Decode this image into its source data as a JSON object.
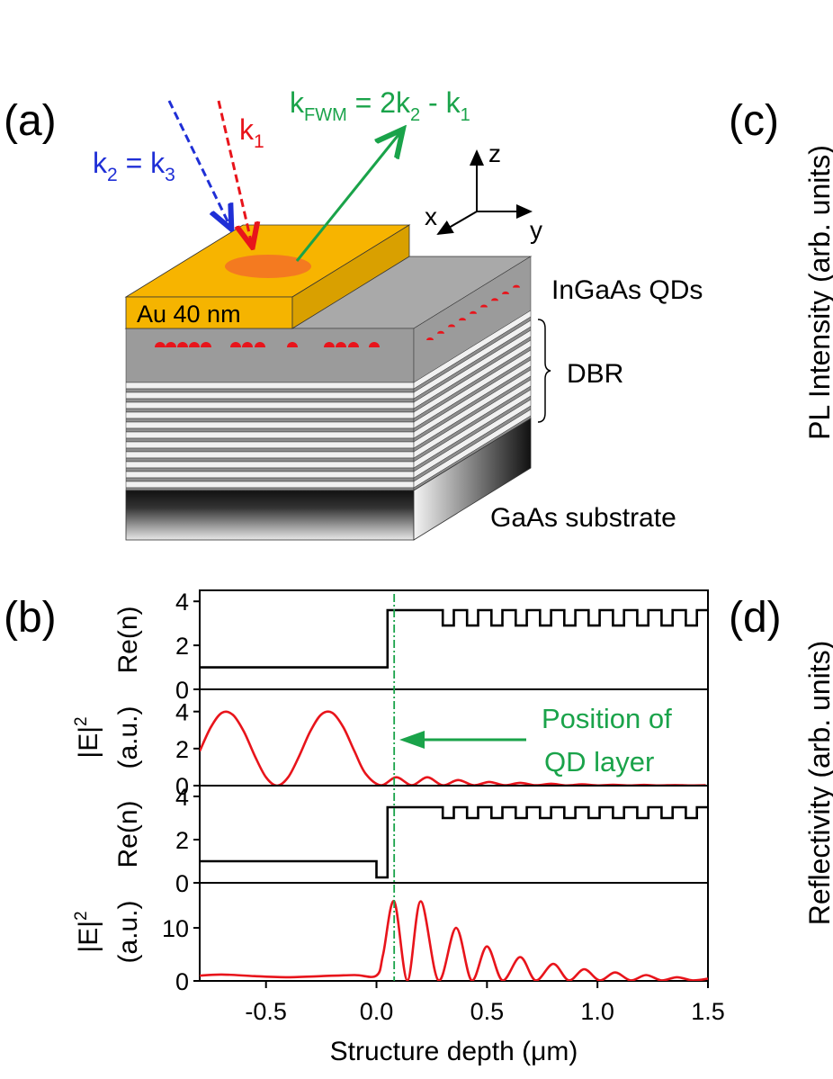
{
  "figure": {
    "panel_a": "(a)",
    "panel_b": "(b)",
    "panel_c": "(c)",
    "panel_d": "(d)",
    "c_ylabel": "PL Intensity (arb. units)",
    "d_ylabel": "Reflectivity (arb. units)"
  },
  "schematic": {
    "k1": [
      "k",
      "1"
    ],
    "k23": [
      "k",
      "2",
      " = k",
      "3"
    ],
    "kfwm": [
      "k",
      "FWM",
      " = 2k",
      "2",
      " - k",
      "1"
    ],
    "axis_z": "z",
    "axis_x": "x",
    "axis_y": "y",
    "qds": "InGaAs QDs",
    "dbr": "DBR",
    "au": "Au 40 nm",
    "substrate": "GaAs substrate"
  },
  "chart_data": [
    {
      "type": "line",
      "ylabel": "Re(n)",
      "color": "#000000",
      "smooth": false,
      "xlim": [
        -0.8,
        1.5
      ],
      "ylim": [
        0,
        4.5
      ],
      "yticks": [
        0,
        2,
        4
      ],
      "x": [
        -0.8,
        0.05,
        0.05,
        0.3,
        0.3,
        0.35,
        0.35,
        0.41,
        0.41,
        0.46,
        0.46,
        0.52,
        0.52,
        0.57,
        0.57,
        0.63,
        0.63,
        0.68,
        0.68,
        0.74,
        0.74,
        0.79,
        0.79,
        0.85,
        0.85,
        0.9,
        0.9,
        0.96,
        0.96,
        1.01,
        1.01,
        1.07,
        1.07,
        1.12,
        1.12,
        1.18,
        1.18,
        1.23,
        1.23,
        1.29,
        1.29,
        1.34,
        1.34,
        1.4,
        1.4,
        1.45,
        1.45,
        1.5
      ],
      "values": [
        1,
        1,
        3.6,
        3.6,
        2.9,
        2.9,
        3.6,
        3.6,
        2.9,
        2.9,
        3.6,
        3.6,
        2.9,
        2.9,
        3.6,
        3.6,
        2.9,
        2.9,
        3.6,
        3.6,
        2.9,
        2.9,
        3.6,
        3.6,
        2.9,
        2.9,
        3.6,
        3.6,
        2.9,
        2.9,
        3.6,
        3.6,
        2.9,
        2.9,
        3.6,
        3.6,
        2.9,
        2.9,
        3.6,
        3.6,
        2.9,
        2.9,
        3.6,
        3.6,
        2.9,
        2.9,
        3.6,
        3.6
      ]
    },
    {
      "type": "line",
      "ylabel_main": "|E|",
      "ylabel_sup": "2",
      "ylabel": "(a.u.)",
      "color": "#e8141b",
      "smooth": true,
      "xlim": [
        -0.8,
        1.5
      ],
      "ylim": [
        0,
        5.2
      ],
      "yticks": [
        0,
        2,
        4
      ],
      "x": [
        -0.8,
        -0.75,
        -0.7,
        -0.65,
        -0.6,
        -0.55,
        -0.5,
        -0.45,
        -0.4,
        -0.35,
        -0.3,
        -0.25,
        -0.2,
        -0.15,
        -0.1,
        -0.05,
        0.02,
        0.09,
        0.16,
        0.23,
        0.3,
        0.37,
        0.44,
        0.51,
        0.58,
        0.65,
        0.72,
        0.79,
        0.86,
        0.93,
        1.0,
        1.07,
        1.14,
        1.21,
        1.28,
        1.35,
        1.42,
        1.49
      ],
      "values": [
        1.86,
        3.15,
        3.93,
        3.83,
        2.92,
        1.59,
        0.45,
        0,
        0.45,
        1.59,
        2.92,
        3.84,
        3.93,
        3.15,
        1.86,
        0.66,
        0.02,
        0.45,
        0.02,
        0.45,
        0.02,
        0.3,
        0.02,
        0.2,
        0.02,
        0.15,
        0.02,
        0.1,
        0.01,
        0.07,
        0.01,
        0.05,
        0.01,
        0.04,
        0.01,
        0.03,
        0.01,
        0.02
      ],
      "annotation": {
        "text": [
          "Position of",
          "QD layer"
        ],
        "x": 0.08,
        "color": "#1aa34a"
      }
    },
    {
      "type": "line",
      "ylabel": "Re(n)",
      "color": "#000000",
      "smooth": false,
      "xlim": [
        -0.8,
        1.5
      ],
      "ylim": [
        0,
        4.5
      ],
      "yticks": [
        0,
        2,
        4
      ],
      "x": [
        -0.8,
        0,
        0,
        0.05,
        0.05,
        0.3,
        0.3,
        0.35,
        0.35,
        0.41,
        0.41,
        0.46,
        0.46,
        0.52,
        0.52,
        0.57,
        0.57,
        0.63,
        0.63,
        0.68,
        0.68,
        0.74,
        0.74,
        0.79,
        0.79,
        0.85,
        0.85,
        0.9,
        0.9,
        0.96,
        0.96,
        1.01,
        1.01,
        1.07,
        1.07,
        1.12,
        1.12,
        1.18,
        1.18,
        1.23,
        1.23,
        1.29,
        1.29,
        1.34,
        1.34,
        1.4,
        1.4,
        1.45,
        1.45,
        1.5
      ],
      "values": [
        1,
        1,
        0.25,
        0.25,
        3.5,
        3.5,
        3,
        3,
        3.5,
        3.5,
        3,
        3,
        3.5,
        3.5,
        3,
        3,
        3.5,
        3.5,
        3,
        3,
        3.5,
        3.5,
        3,
        3,
        3.5,
        3.5,
        3,
        3,
        3.5,
        3.5,
        3,
        3,
        3.5,
        3.5,
        3,
        3,
        3.5,
        3.5,
        3,
        3,
        3.5,
        3.5,
        3,
        3,
        3.5,
        3.5,
        3,
        3,
        3.5,
        3.5
      ]
    },
    {
      "type": "line",
      "ylabel_main": "|E|",
      "ylabel_sup": "2",
      "ylabel": "(a.u.)",
      "color": "#e8141b",
      "smooth": true,
      "xlim": [
        -0.8,
        1.5
      ],
      "ylim": [
        0,
        18.5
      ],
      "yticks": [
        0,
        10
      ],
      "xticks": [
        -0.5,
        {
          "value": 0,
          "label": "0.0"
        },
        0.5,
        {
          "value": 1,
          "label": "1.0"
        },
        1.5
      ],
      "xlabel": "Structure depth (μm)",
      "x": [
        -0.8,
        -0.7,
        -0.55,
        -0.4,
        -0.25,
        -0.1,
        0,
        0.03,
        0.08,
        0.14,
        0.2,
        0.28,
        0.36,
        0.43,
        0.5,
        0.57,
        0.65,
        0.72,
        0.8,
        0.87,
        0.94,
        1.01,
        1.08,
        1.15,
        1.22,
        1.29,
        1.36,
        1.43,
        1.5
      ],
      "values": [
        1.0,
        1.2,
        0.9,
        0.7,
        0.9,
        1.1,
        1.0,
        5,
        15,
        0.1,
        15,
        0.1,
        10,
        0.1,
        6.5,
        0.1,
        4.5,
        0.1,
        3.2,
        0.1,
        2.2,
        0.1,
        1.6,
        0.1,
        1.1,
        0.1,
        0.7,
        0.1,
        0.4
      ]
    }
  ]
}
